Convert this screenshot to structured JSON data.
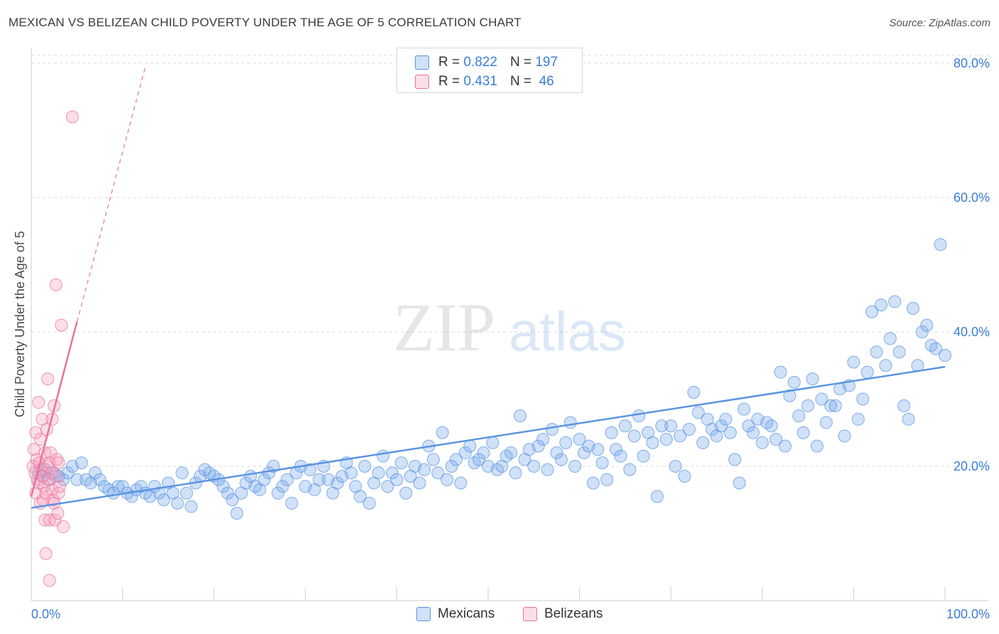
{
  "header": {
    "title": "MEXICAN VS BELIZEAN CHILD POVERTY UNDER THE AGE OF 5 CORRELATION CHART",
    "source": "Source: ZipAtlas.com"
  },
  "watermark": {
    "zip": "ZIP",
    "atlas": "atlas"
  },
  "colors": {
    "mexicans": "#5b95e0",
    "mexicans_fill": "rgba(120,170,235,0.35)",
    "belizeans": "#e8739b",
    "belizeans_fill": "rgba(245,160,190,0.35)",
    "accent_text": "#3b7dd8"
  },
  "legend": {
    "rows": [
      {
        "r_label": "R =",
        "r_value": "0.822",
        "n_label": "N =",
        "n_value": "197"
      },
      {
        "r_label": "R =",
        "r_value": "0.431",
        "n_label": "N =",
        "n_value": " 46"
      }
    ]
  },
  "bottom_legend": {
    "mexicans": "Mexicans",
    "belizeans": "Belizeans"
  },
  "chart_data": {
    "type": "scatter",
    "title": "MEXICAN VS BELIZEAN CHILD POVERTY UNDER THE AGE OF 5 CORRELATION CHART",
    "ylabel": "Child Poverty Under the Age of 5",
    "xlabel": "",
    "xlim": [
      0,
      100
    ],
    "ylim": [
      0,
      82
    ],
    "y_ticks": [
      20,
      40,
      60,
      80
    ],
    "y_tick_labels": [
      "20.0%",
      "40.0%",
      "60.0%",
      "80.0%"
    ],
    "x_tick_labels": [
      "0.0%",
      "100.0%"
    ],
    "series": [
      {
        "name": "Mexicans",
        "r": 0.822,
        "n": 197,
        "trend": {
          "x": [
            0,
            100
          ],
          "y": [
            13.8,
            34.8
          ],
          "style": "solid"
        },
        "points": [
          [
            0.8,
            19
          ],
          [
            1.2,
            18.5
          ],
          [
            1.5,
            19.5
          ],
          [
            2,
            18
          ],
          [
            2.5,
            19
          ],
          [
            3,
            18.5
          ],
          [
            3.5,
            18
          ],
          [
            4,
            19
          ],
          [
            4.5,
            20
          ],
          [
            5,
            18
          ],
          [
            5.5,
            20.5
          ],
          [
            6,
            18
          ],
          [
            6.5,
            17.5
          ],
          [
            7,
            19
          ],
          [
            7.5,
            18
          ],
          [
            8,
            17
          ],
          [
            8.5,
            16.5
          ],
          [
            9,
            16
          ],
          [
            9.5,
            17
          ],
          [
            10,
            17
          ],
          [
            10.5,
            16
          ],
          [
            11,
            15.5
          ],
          [
            11.5,
            16.5
          ],
          [
            12,
            17
          ],
          [
            12.5,
            16
          ],
          [
            13,
            15.5
          ],
          [
            13.5,
            17
          ],
          [
            14,
            16
          ],
          [
            14.5,
            15
          ],
          [
            15,
            17.5
          ],
          [
            15.5,
            16
          ],
          [
            16,
            14.5
          ],
          [
            16.5,
            19
          ],
          [
            17,
            16
          ],
          [
            17.5,
            14
          ],
          [
            18,
            17.5
          ],
          [
            18.5,
            18.5
          ],
          [
            19,
            19.5
          ],
          [
            19.5,
            19
          ],
          [
            20,
            18.5
          ],
          [
            20.5,
            18
          ],
          [
            21,
            17
          ],
          [
            21.5,
            16
          ],
          [
            22,
            15
          ],
          [
            22.5,
            13
          ],
          [
            23,
            16
          ],
          [
            23.5,
            17.5
          ],
          [
            24,
            18.5
          ],
          [
            24.5,
            17
          ],
          [
            25,
            16.5
          ],
          [
            25.5,
            18
          ],
          [
            26,
            19
          ],
          [
            26.5,
            20
          ],
          [
            27,
            16
          ],
          [
            27.5,
            17
          ],
          [
            28,
            18
          ],
          [
            28.5,
            14.5
          ],
          [
            29,
            19
          ],
          [
            29.5,
            20
          ],
          [
            30,
            17
          ],
          [
            30.5,
            19.5
          ],
          [
            31,
            16.5
          ],
          [
            31.5,
            18
          ],
          [
            32,
            20
          ],
          [
            32.5,
            18
          ],
          [
            33,
            16
          ],
          [
            33.5,
            17.5
          ],
          [
            34,
            18.5
          ],
          [
            34.5,
            20.5
          ],
          [
            35,
            19
          ],
          [
            35.5,
            17
          ],
          [
            36,
            15.5
          ],
          [
            36.5,
            20
          ],
          [
            37,
            14.5
          ],
          [
            37.5,
            17.5
          ],
          [
            38,
            19
          ],
          [
            38.5,
            21.5
          ],
          [
            39,
            17
          ],
          [
            39.5,
            19
          ],
          [
            40,
            18
          ],
          [
            40.5,
            20.5
          ],
          [
            41,
            16
          ],
          [
            41.5,
            18.5
          ],
          [
            42,
            20
          ],
          [
            42.5,
            17.5
          ],
          [
            43,
            19.5
          ],
          [
            43.5,
            23
          ],
          [
            44,
            21
          ],
          [
            44.5,
            19
          ],
          [
            45,
            25
          ],
          [
            45.5,
            18
          ],
          [
            46,
            20
          ],
          [
            46.5,
            21
          ],
          [
            47,
            17.5
          ],
          [
            47.5,
            22
          ],
          [
            48,
            23
          ],
          [
            48.5,
            20.5
          ],
          [
            49,
            21
          ],
          [
            49.5,
            22
          ],
          [
            50,
            20
          ],
          [
            50.5,
            23.5
          ],
          [
            51,
            19.5
          ],
          [
            51.5,
            20
          ],
          [
            52,
            21.5
          ],
          [
            52.5,
            22
          ],
          [
            53,
            19
          ],
          [
            53.5,
            27.5
          ],
          [
            54,
            21
          ],
          [
            54.5,
            22.5
          ],
          [
            55,
            20
          ],
          [
            55.5,
            23
          ],
          [
            56,
            24
          ],
          [
            56.5,
            19.5
          ],
          [
            57,
            25.5
          ],
          [
            57.5,
            22
          ],
          [
            58,
            21
          ],
          [
            58.5,
            23.5
          ],
          [
            59,
            26.5
          ],
          [
            59.5,
            20
          ],
          [
            60,
            24
          ],
          [
            60.5,
            22
          ],
          [
            61,
            23
          ],
          [
            61.5,
            17.5
          ],
          [
            62,
            22.5
          ],
          [
            62.5,
            20.5
          ],
          [
            63,
            18
          ],
          [
            63.5,
            25
          ],
          [
            64,
            22.5
          ],
          [
            64.5,
            21.5
          ],
          [
            65,
            26
          ],
          [
            65.5,
            19.5
          ],
          [
            66,
            24.5
          ],
          [
            66.5,
            27.5
          ],
          [
            67,
            21.5
          ],
          [
            67.5,
            25
          ],
          [
            68,
            23.5
          ],
          [
            68.5,
            15.5
          ],
          [
            69,
            26
          ],
          [
            69.5,
            24
          ],
          [
            70,
            26
          ],
          [
            70.5,
            20
          ],
          [
            71,
            24.5
          ],
          [
            71.5,
            18.5
          ],
          [
            72,
            25.5
          ],
          [
            72.5,
            31
          ],
          [
            73,
            28
          ],
          [
            73.5,
            23.5
          ],
          [
            74,
            27
          ],
          [
            74.5,
            25.5
          ],
          [
            75,
            24.5
          ],
          [
            75.5,
            26
          ],
          [
            76,
            27
          ],
          [
            76.5,
            25
          ],
          [
            77,
            21
          ],
          [
            77.5,
            17.5
          ],
          [
            78,
            28.5
          ],
          [
            78.5,
            26
          ],
          [
            79,
            25
          ],
          [
            79.5,
            27
          ],
          [
            80,
            23.5
          ],
          [
            80.5,
            26.5
          ],
          [
            81,
            26
          ],
          [
            81.5,
            24
          ],
          [
            82,
            34
          ],
          [
            82.5,
            23
          ],
          [
            83,
            30.5
          ],
          [
            83.5,
            32.5
          ],
          [
            84,
            27.5
          ],
          [
            84.5,
            25
          ],
          [
            85,
            29
          ],
          [
            85.5,
            33
          ],
          [
            86,
            23
          ],
          [
            86.5,
            30
          ],
          [
            87,
            26.5
          ],
          [
            87.5,
            29
          ],
          [
            88,
            29
          ],
          [
            88.5,
            31.5
          ],
          [
            89,
            24.5
          ],
          [
            89.5,
            32
          ],
          [
            90,
            35.5
          ],
          [
            90.5,
            27
          ],
          [
            91,
            30
          ],
          [
            91.5,
            34
          ],
          [
            92,
            43
          ],
          [
            92.5,
            37
          ],
          [
            93,
            44
          ],
          [
            93.5,
            35
          ],
          [
            94,
            39
          ],
          [
            94.5,
            44.5
          ],
          [
            95,
            37
          ],
          [
            95.5,
            29
          ],
          [
            96,
            27
          ],
          [
            96.5,
            43.5
          ],
          [
            97,
            35
          ],
          [
            97.5,
            40
          ],
          [
            98,
            41
          ],
          [
            98.5,
            38
          ],
          [
            99,
            37.5
          ],
          [
            99.5,
            53
          ],
          [
            100,
            36.5
          ]
        ]
      },
      {
        "name": "Belizeans",
        "r": 0.431,
        "n": 46,
        "trend": {
          "x": [
            0,
            5
          ],
          "y": [
            15.5,
            41.5
          ],
          "style": "solid",
          "extension": {
            "x": [
              5,
              12.5
            ],
            "y": [
              41.5,
              79.5
            ],
            "style": "dashed"
          }
        },
        "points": [
          [
            0.2,
            20
          ],
          [
            0.3,
            22.5
          ],
          [
            0.4,
            19
          ],
          [
            0.5,
            25
          ],
          [
            0.5,
            16
          ],
          [
            0.6,
            21
          ],
          [
            0.7,
            18
          ],
          [
            0.8,
            17.5
          ],
          [
            0.8,
            29.5
          ],
          [
            0.9,
            20.5
          ],
          [
            1,
            24
          ],
          [
            1,
            14.5
          ],
          [
            1.1,
            19.5
          ],
          [
            1.2,
            27
          ],
          [
            1.3,
            18.5
          ],
          [
            1.3,
            15
          ],
          [
            1.4,
            17
          ],
          [
            1.5,
            22
          ],
          [
            1.5,
            12
          ],
          [
            1.6,
            16
          ],
          [
            1.6,
            7
          ],
          [
            1.7,
            25.5
          ],
          [
            1.8,
            33
          ],
          [
            1.8,
            20
          ],
          [
            1.9,
            18
          ],
          [
            2,
            12
          ],
          [
            2,
            3
          ],
          [
            2,
            20.5
          ],
          [
            2.1,
            22
          ],
          [
            2.2,
            19
          ],
          [
            2.3,
            27
          ],
          [
            2.3,
            16.5
          ],
          [
            2.4,
            15
          ],
          [
            2.5,
            29
          ],
          [
            2.5,
            14.5
          ],
          [
            2.6,
            12
          ],
          [
            2.7,
            18.5
          ],
          [
            2.7,
            47
          ],
          [
            2.8,
            21
          ],
          [
            2.9,
            13
          ],
          [
            3,
            16
          ],
          [
            3,
            20.5
          ],
          [
            3.1,
            17
          ],
          [
            3.3,
            41
          ],
          [
            3.5,
            11
          ],
          [
            4.5,
            72
          ]
        ]
      }
    ]
  }
}
